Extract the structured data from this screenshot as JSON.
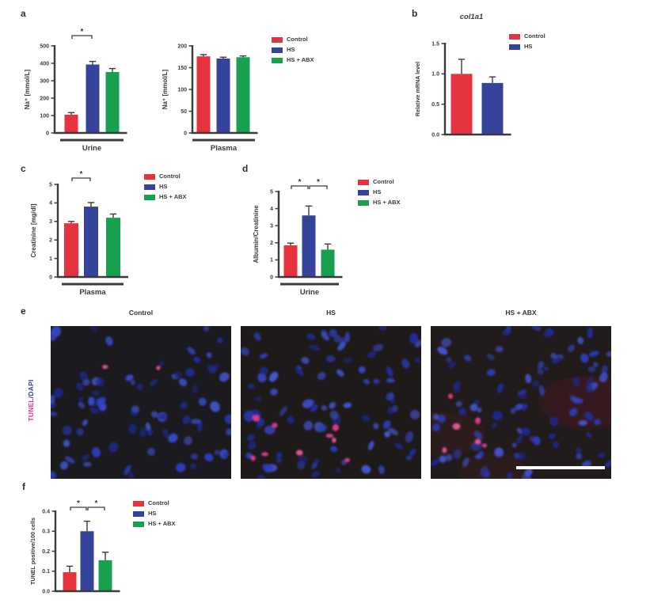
{
  "colors": {
    "control_red": "#E5333F",
    "hs_blue": "#36439A",
    "abx_green": "#17A04E",
    "tunel_pink": "#EC2E91",
    "dapi_blue": "#3442A0",
    "text": "#3B3B3B",
    "scalebar": "#FFFFFF",
    "micro_bg_1": "#1B1A1E",
    "micro_bg_2": "#1E1A1A",
    "micro_bg_3": "#221B1B"
  },
  "panels": {
    "a": {
      "label": "a"
    },
    "b": {
      "label": "b"
    },
    "c": {
      "label": "c"
    },
    "d": {
      "label": "d"
    },
    "e": {
      "label": "e",
      "side_label": {
        "tunel": "TUNEL",
        "sep": "/",
        "dapi": "DAPI"
      },
      "images": [
        {
          "title": "Control",
          "nuclei": 82,
          "tunel_spots": 2,
          "seed": 7,
          "spot_region": [
            0.28,
            0.62,
            0.18,
            0.32
          ],
          "scalebar": false,
          "haze": false
        },
        {
          "title": "HS",
          "nuclei": 90,
          "tunel_spots": 9,
          "seed": 23,
          "spot_region": [
            0.05,
            0.6,
            0.58,
            0.95
          ],
          "scalebar": false,
          "haze": false
        },
        {
          "title": "HS + ABX",
          "nuclei": 94,
          "tunel_spots": 6,
          "seed": 41,
          "spot_region": [
            0.02,
            0.35,
            0.4,
            0.95
          ],
          "scalebar": true,
          "haze": true
        }
      ]
    },
    "f": {
      "label": "f"
    }
  },
  "legends": {
    "a": {
      "items": [
        {
          "label": "Control",
          "color": "control_red"
        },
        {
          "label": "HS",
          "color": "hs_blue"
        },
        {
          "label": "HS + ABX",
          "color": "abx_green"
        }
      ]
    },
    "b": {
      "items": [
        {
          "label": "Control",
          "color": "control_red"
        },
        {
          "label": "HS",
          "color": "hs_blue"
        }
      ]
    },
    "c": {
      "items": [
        {
          "label": "Control",
          "color": "control_red"
        },
        {
          "label": "HS",
          "color": "hs_blue"
        },
        {
          "label": "HS + ABX",
          "color": "abx_green"
        }
      ]
    },
    "d": {
      "items": [
        {
          "label": "Control",
          "color": "control_red"
        },
        {
          "label": "HS",
          "color": "hs_blue"
        },
        {
          "label": "HS + ABX",
          "color": "abx_green"
        }
      ]
    },
    "f": {
      "items": [
        {
          "label": "Control",
          "color": "control_red"
        },
        {
          "label": "HS",
          "color": "hs_blue"
        },
        {
          "label": "HS + ABX",
          "color": "abx_green"
        }
      ]
    }
  },
  "chart_data": [
    {
      "id": "a_urine",
      "type": "bar",
      "title": "",
      "categories": [
        "Control",
        "HS",
        "HS + ABX"
      ],
      "values": [
        105,
        393,
        350
      ],
      "errors": [
        12,
        18,
        20
      ],
      "bar_colors": [
        "control_red",
        "hs_blue",
        "abx_green"
      ],
      "xlabel": "Urine",
      "ylabel": "Na⁺ [mmol/L]",
      "ylim": [
        0,
        500
      ],
      "ytick_step": 100,
      "ytick_decimals": 0,
      "significance": [
        {
          "from": 0,
          "to": 1,
          "label": "*"
        }
      ]
    },
    {
      "id": "a_plasma",
      "type": "bar",
      "title": "",
      "categories": [
        "Control",
        "HS",
        "HS + ABX"
      ],
      "values": [
        176,
        171,
        174
      ],
      "errors": [
        4,
        3,
        3
      ],
      "bar_colors": [
        "control_red",
        "hs_blue",
        "abx_green"
      ],
      "xlabel": "Plasma",
      "ylabel": "Na⁺ [mmol/L]",
      "ylim": [
        0,
        200
      ],
      "ytick_step": 50,
      "ytick_decimals": 0,
      "significance": []
    },
    {
      "id": "b_col1a1",
      "type": "bar",
      "title": "col1a1",
      "categories": [
        "Control",
        "HS"
      ],
      "values": [
        1.0,
        0.85
      ],
      "errors": [
        0.24,
        0.1
      ],
      "bar_colors": [
        "control_red",
        "hs_blue"
      ],
      "xlabel": "",
      "ylabel": "Relative mRNA level",
      "ylim": [
        0,
        1.5
      ],
      "ytick_step": 0.5,
      "ytick_decimals": 1,
      "significance": []
    },
    {
      "id": "c_creatinine",
      "type": "bar",
      "title": "",
      "categories": [
        "Control",
        "HS",
        "HS + ABX"
      ],
      "values": [
        2.9,
        3.8,
        3.2
      ],
      "errors": [
        0.1,
        0.22,
        0.2
      ],
      "bar_colors": [
        "control_red",
        "hs_blue",
        "abx_green"
      ],
      "xlabel": "Plasma",
      "ylabel": "Creatinine [mg/dl]",
      "ylim": [
        0,
        5
      ],
      "ytick_step": 1,
      "ytick_decimals": 0,
      "significance": [
        {
          "from": 0,
          "to": 1,
          "label": "*"
        }
      ]
    },
    {
      "id": "d_albumin",
      "type": "bar",
      "title": "",
      "categories": [
        "Control",
        "HS",
        "HS + ABX"
      ],
      "values": [
        1.85,
        3.6,
        1.6
      ],
      "errors": [
        0.13,
        0.55,
        0.33
      ],
      "bar_colors": [
        "control_red",
        "hs_blue",
        "abx_green"
      ],
      "xlabel": "Urine",
      "ylabel": "Albumin/Creatinine",
      "ylim": [
        0,
        5
      ],
      "ytick_step": 1,
      "ytick_decimals": 0,
      "significance": [
        {
          "from": 0,
          "to": 1,
          "label": "*"
        },
        {
          "from": 1,
          "to": 2,
          "label": "*"
        }
      ]
    },
    {
      "id": "f_tunel",
      "type": "bar",
      "title": "",
      "categories": [
        "Control",
        "HS",
        "HS + ABX"
      ],
      "values": [
        0.095,
        0.3,
        0.155
      ],
      "errors": [
        0.03,
        0.05,
        0.04
      ],
      "bar_colors": [
        "control_red",
        "hs_blue",
        "abx_green"
      ],
      "xlabel": "",
      "ylabel": "TUNEL positive/100 cells",
      "ylim": [
        0,
        0.4
      ],
      "ytick_step": 0.1,
      "ytick_decimals": 1,
      "significance": [
        {
          "from": 0,
          "to": 1,
          "label": "*"
        },
        {
          "from": 1,
          "to": 2,
          "label": "*"
        }
      ]
    }
  ]
}
